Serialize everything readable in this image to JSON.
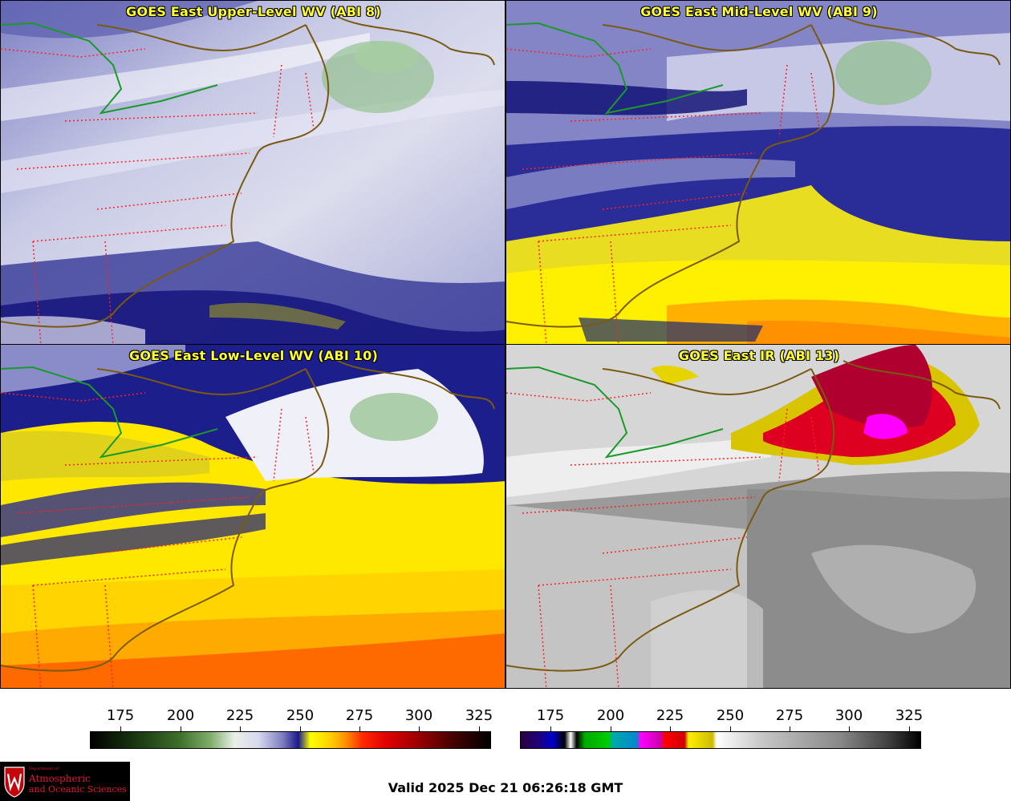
{
  "panels": [
    {
      "title": "GOES East Upper-Level WV (ABI 8)",
      "palette": "wv-upper"
    },
    {
      "title": "GOES East Mid-Level WV (ABI 9)",
      "palette": "wv-mid"
    },
    {
      "title": "GOES East Low-Level WV (ABI 10)",
      "palette": "wv-low"
    },
    {
      "title": "GOES East IR (ABI 13)",
      "palette": "ir"
    }
  ],
  "colorbars": {
    "water_vapor": {
      "ticks": [
        "175",
        "200",
        "225",
        "250",
        "275",
        "300",
        "325"
      ]
    },
    "infrared": {
      "ticks": [
        "175",
        "200",
        "225",
        "250",
        "275",
        "300",
        "325"
      ]
    }
  },
  "footer": {
    "valid_time": "Valid 2025 Dec 21 06:26:18 GMT",
    "logo": {
      "department": "Department of",
      "line1": "Atmospheric",
      "line2": "and Oceanic Sciences"
    }
  },
  "colors": {
    "title_text": "#ffff33",
    "coastline": "#7a5a10",
    "state_borders": "#ff2020",
    "country_border": "#1a9a2a",
    "logo_red": "#e21833"
  }
}
